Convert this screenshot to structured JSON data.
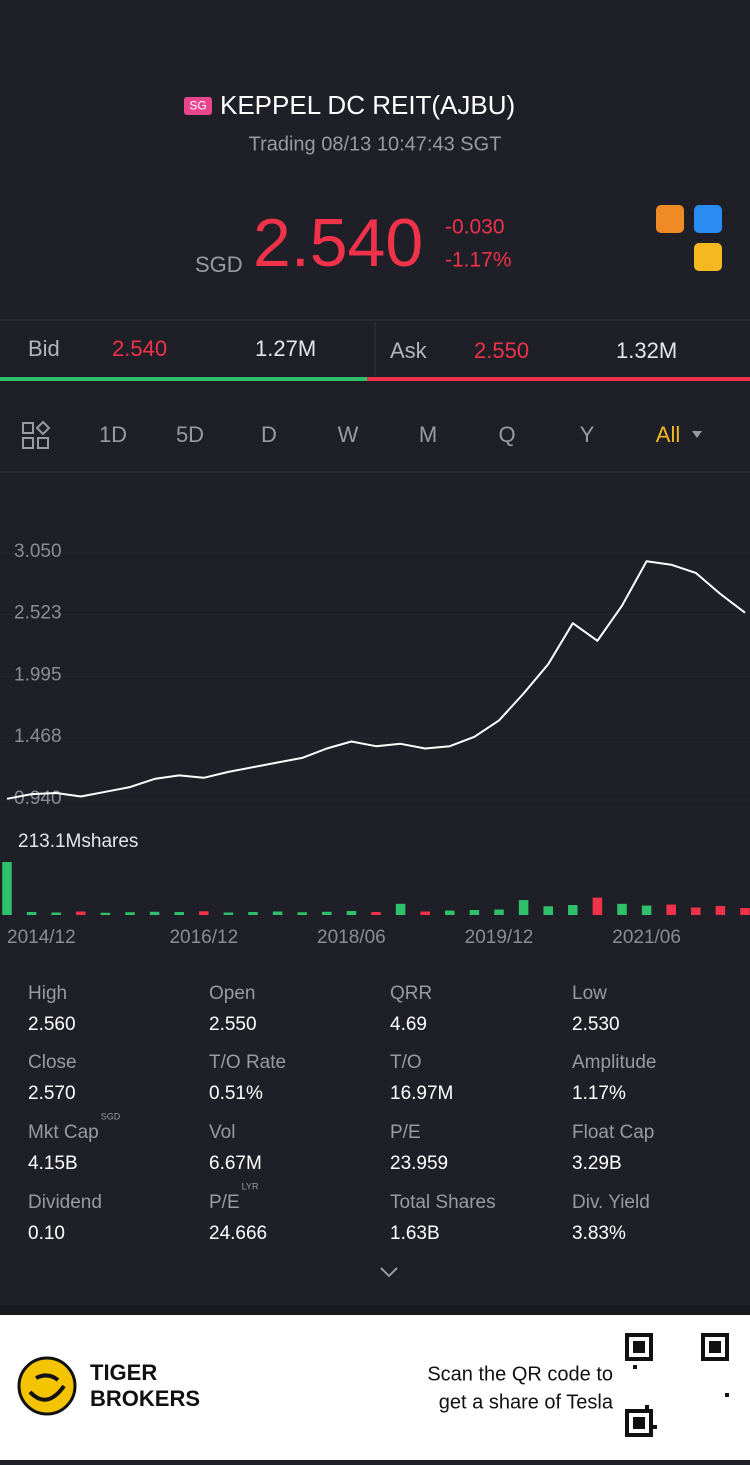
{
  "header": {
    "badge": "SG",
    "name": "KEPPEL DC REIT(AJBU)",
    "status": "Trading 08/13 10:47:43 SGT"
  },
  "quote": {
    "currency": "SGD",
    "price": "2.540",
    "change": "-0.030",
    "change_pct": "-1.17%"
  },
  "book": {
    "bid_label": "Bid",
    "bid_price": "2.540",
    "bid_size": "1.27M",
    "ask_label": "Ask",
    "ask_price": "2.550",
    "ask_size": "1.32M"
  },
  "tabs": [
    "1D",
    "5D",
    "D",
    "W",
    "M",
    "Q",
    "Y",
    "All"
  ],
  "chart_data": {
    "type": "line",
    "color": "#ffffff",
    "x": [
      "2014/12",
      "2015/03",
      "2015/06",
      "2015/09",
      "2015/12",
      "2016/03",
      "2016/06",
      "2016/09",
      "2016/12",
      "2017/03",
      "2017/06",
      "2017/09",
      "2017/12",
      "2018/03",
      "2018/06",
      "2018/09",
      "2018/12",
      "2019/03",
      "2019/06",
      "2019/09",
      "2019/12",
      "2020/03",
      "2020/06",
      "2020/09",
      "2020/12",
      "2021/03",
      "2021/06",
      "2021/09",
      "2021/12",
      "2022/03",
      "2022/06"
    ],
    "values": [
      0.95,
      0.99,
      1.0,
      0.97,
      1.01,
      1.05,
      1.12,
      1.15,
      1.13,
      1.18,
      1.22,
      1.26,
      1.3,
      1.38,
      1.44,
      1.4,
      1.42,
      1.38,
      1.4,
      1.48,
      1.62,
      1.85,
      2.1,
      2.45,
      2.3,
      2.6,
      2.98,
      2.95,
      2.88,
      2.7,
      2.54
    ],
    "ylim": [
      0.94,
      3.05
    ],
    "yticks": [
      {
        "value": 3.05,
        "label": "3.050"
      },
      2.523,
      1.995,
      1.468,
      {
        "value": 0.94,
        "label": "0.940"
      }
    ],
    "xticks": [
      "2014/12",
      "2016/12",
      "2018/06",
      "2019/12",
      "2021/06"
    ],
    "volume_label": "213.1Mshares",
    "volume": [
      213.1,
      12,
      10,
      14,
      9,
      11,
      13,
      12,
      15,
      10,
      12,
      14,
      11,
      13,
      16,
      12,
      45,
      14,
      18,
      20,
      22,
      60,
      35,
      40,
      70,
      45,
      38,
      42,
      30,
      36,
      28
    ],
    "volume_ylim": [
      0,
      213.1
    ],
    "up_color": "#2fc06b",
    "down_color": "#f0324a"
  },
  "stats": [
    {
      "label": "High",
      "value": "2.560"
    },
    {
      "label": "Open",
      "value": "2.550"
    },
    {
      "label": "QRR",
      "value": "4.69"
    },
    {
      "label": "Low",
      "value": "2.530"
    },
    {
      "label": "Close",
      "value": "2.570"
    },
    {
      "label": "T/O Rate",
      "value": "0.51%"
    },
    {
      "label": "T/O",
      "value": "16.97M"
    },
    {
      "label": "Amplitude",
      "value": "1.17%"
    },
    {
      "label": "Mkt Cap",
      "sup": "SGD",
      "value": "4.15B"
    },
    {
      "label": "Vol",
      "value": "6.67M"
    },
    {
      "label": "P/E",
      "value": "23.959"
    },
    {
      "label": "Float Cap",
      "value": "3.29B"
    },
    {
      "label": "Dividend",
      "value": "0.10"
    },
    {
      "label": "P/E",
      "sup": "LYR",
      "value": "24.666"
    },
    {
      "label": "Total Shares",
      "value": "1.63B"
    },
    {
      "label": "Div. Yield",
      "value": "3.83%"
    }
  ],
  "footer": {
    "brand_1": "TIGER",
    "brand_2": "BROKERS",
    "promo_1": "Scan the QR code to",
    "promo_2": "get a share of Tesla"
  }
}
